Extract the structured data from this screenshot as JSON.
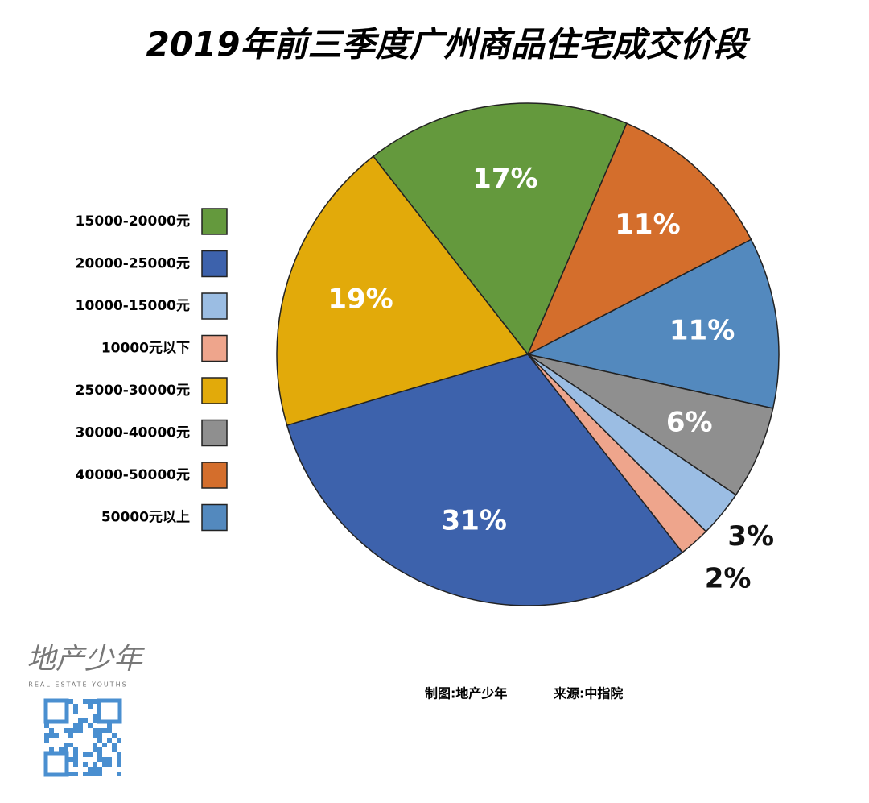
{
  "chart_data": {
    "type": "pie",
    "title": "2019年前三季度广州商品住宅成交价段",
    "values": [
      17,
      11,
      11,
      6,
      3,
      2,
      31,
      19
    ],
    "value_labels": [
      "17%",
      "11%",
      "11%",
      "6%",
      "3%",
      "2%",
      "31%",
      "19%"
    ],
    "colors": [
      "#64993d",
      "#d46e2c",
      "#5389be",
      "#8f8f8f",
      "#9bbde3",
      "#eea58c",
      "#3d62ac",
      "#e2aa0a"
    ],
    "legend": [
      {
        "label": "15000-20000元",
        "color": "#64993d"
      },
      {
        "label": "20000-25000元",
        "color": "#3d62ac"
      },
      {
        "label": "10000-15000元",
        "color": "#9bbde3"
      },
      {
        "label": "10000元以下",
        "color": "#eea58c"
      },
      {
        "label": "25000-30000元",
        "color": "#e2aa0a"
      },
      {
        "label": "30000-40000元",
        "color": "#8f8f8f"
      },
      {
        "label": "40000-50000元",
        "color": "#d46e2c"
      },
      {
        "label": "50000元以上",
        "color": "#5389be"
      }
    ]
  },
  "footer": {
    "credit": "制图:地产少年",
    "source": "来源:中指院",
    "logo": "地产少年",
    "logo_sub": "REAL ESTATE YOUTHS"
  }
}
